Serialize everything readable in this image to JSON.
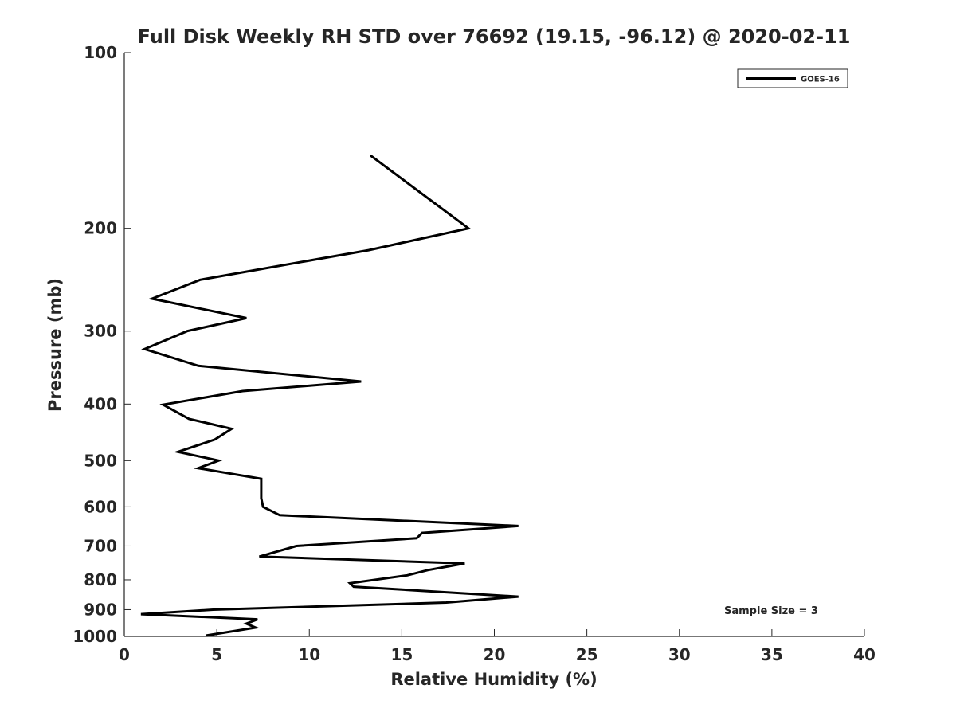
{
  "chart_data": {
    "type": "line",
    "title": "Full Disk Weekly RH STD over 76692 (19.15, -96.12) @ 2020-02-11",
    "xlabel": "Relative Humidity (%)",
    "ylabel": "Pressure (mb)",
    "xlim": [
      0,
      40
    ],
    "ylim": [
      100,
      1000
    ],
    "y_scale": "log",
    "y_reversed": true,
    "grid": false,
    "legend_position": "top-right",
    "x_ticks": [
      0,
      5,
      10,
      15,
      20,
      25,
      30,
      35,
      40
    ],
    "y_ticks": [
      100,
      200,
      300,
      400,
      500,
      600,
      700,
      800,
      900,
      1000
    ],
    "annotation": "Sample Size = 3",
    "line_color": "#000000",
    "series": [
      {
        "name": "GOES-16",
        "points": [
          [
            13.3,
            150
          ],
          [
            18.6,
            200
          ],
          [
            13.2,
            218
          ],
          [
            4.1,
            245
          ],
          [
            1.5,
            264
          ],
          [
            6.6,
            285
          ],
          [
            3.4,
            300
          ],
          [
            1.1,
            322
          ],
          [
            4.0,
            344
          ],
          [
            12.8,
            366
          ],
          [
            6.4,
            380
          ],
          [
            2.1,
            401
          ],
          [
            3.5,
            424
          ],
          [
            5.8,
            441
          ],
          [
            4.9,
            460
          ],
          [
            2.9,
            483
          ],
          [
            5.1,
            500
          ],
          [
            4.0,
            515
          ],
          [
            7.4,
            537
          ],
          [
            7.4,
            580
          ],
          [
            7.5,
            600
          ],
          [
            8.4,
            620
          ],
          [
            21.3,
            647
          ],
          [
            16.1,
            665
          ],
          [
            15.8,
            679
          ],
          [
            9.3,
            700
          ],
          [
            7.3,
            730
          ],
          [
            18.4,
            750
          ],
          [
            16.4,
            770
          ],
          [
            15.3,
            786
          ],
          [
            12.2,
            811
          ],
          [
            12.4,
            822
          ],
          [
            21.3,
            855
          ],
          [
            17.4,
            875
          ],
          [
            4.8,
            900
          ],
          [
            0.9,
            916
          ],
          [
            7.2,
            935
          ],
          [
            6.6,
            951
          ],
          [
            7.1,
            966
          ],
          [
            4.4,
            997
          ]
        ]
      }
    ]
  }
}
